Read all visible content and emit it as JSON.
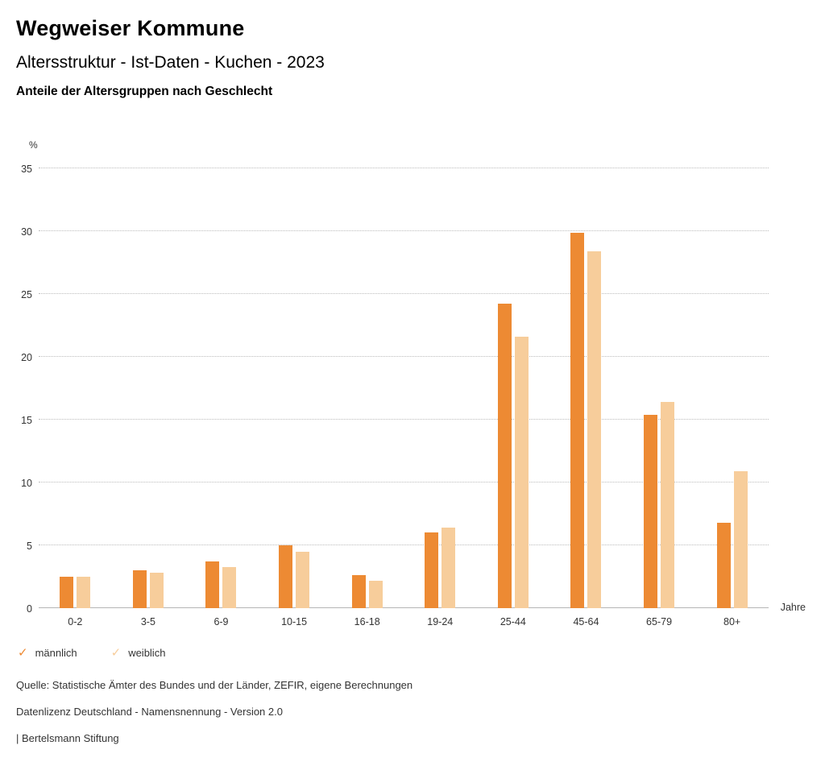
{
  "header": {
    "title": "Wegweiser Kommune",
    "subtitle": "Altersstruktur - Ist-Daten - Kuchen - 2023",
    "chart_heading": "Anteile der Altersgruppen nach Geschlecht"
  },
  "chart_data": {
    "type": "bar",
    "title": "Anteile der Altersgruppen nach Geschlecht",
    "categories": [
      "0-2",
      "3-5",
      "6-9",
      "10-15",
      "16-18",
      "19-24",
      "25-44",
      "45-64",
      "65-79",
      "80+"
    ],
    "series": [
      {
        "name": "männlich",
        "color": "#ED8A33",
        "values": [
          2.5,
          3.0,
          3.7,
          5.0,
          2.6,
          6.0,
          24.2,
          29.9,
          15.4,
          6.8
        ]
      },
      {
        "name": "weiblich",
        "color": "#F7CD9B",
        "values": [
          2.5,
          2.8,
          3.3,
          4.5,
          2.2,
          6.4,
          21.6,
          28.4,
          16.4,
          10.9
        ]
      }
    ],
    "xlabel": "Jahre",
    "ylabel": "%",
    "ylim": [
      0,
      35
    ],
    "ytick_step": 5,
    "grid": true,
    "legend_position": "bottom",
    "legend_marker": "✓"
  },
  "footer": {
    "source": "Quelle: Statistische Ämter des Bundes und der Länder, ZEFIR, eigene Berechnungen",
    "license": "Datenlizenz Deutschland - Namensnennung - Version 2.0",
    "attribution": "| Bertelsmann Stiftung"
  }
}
